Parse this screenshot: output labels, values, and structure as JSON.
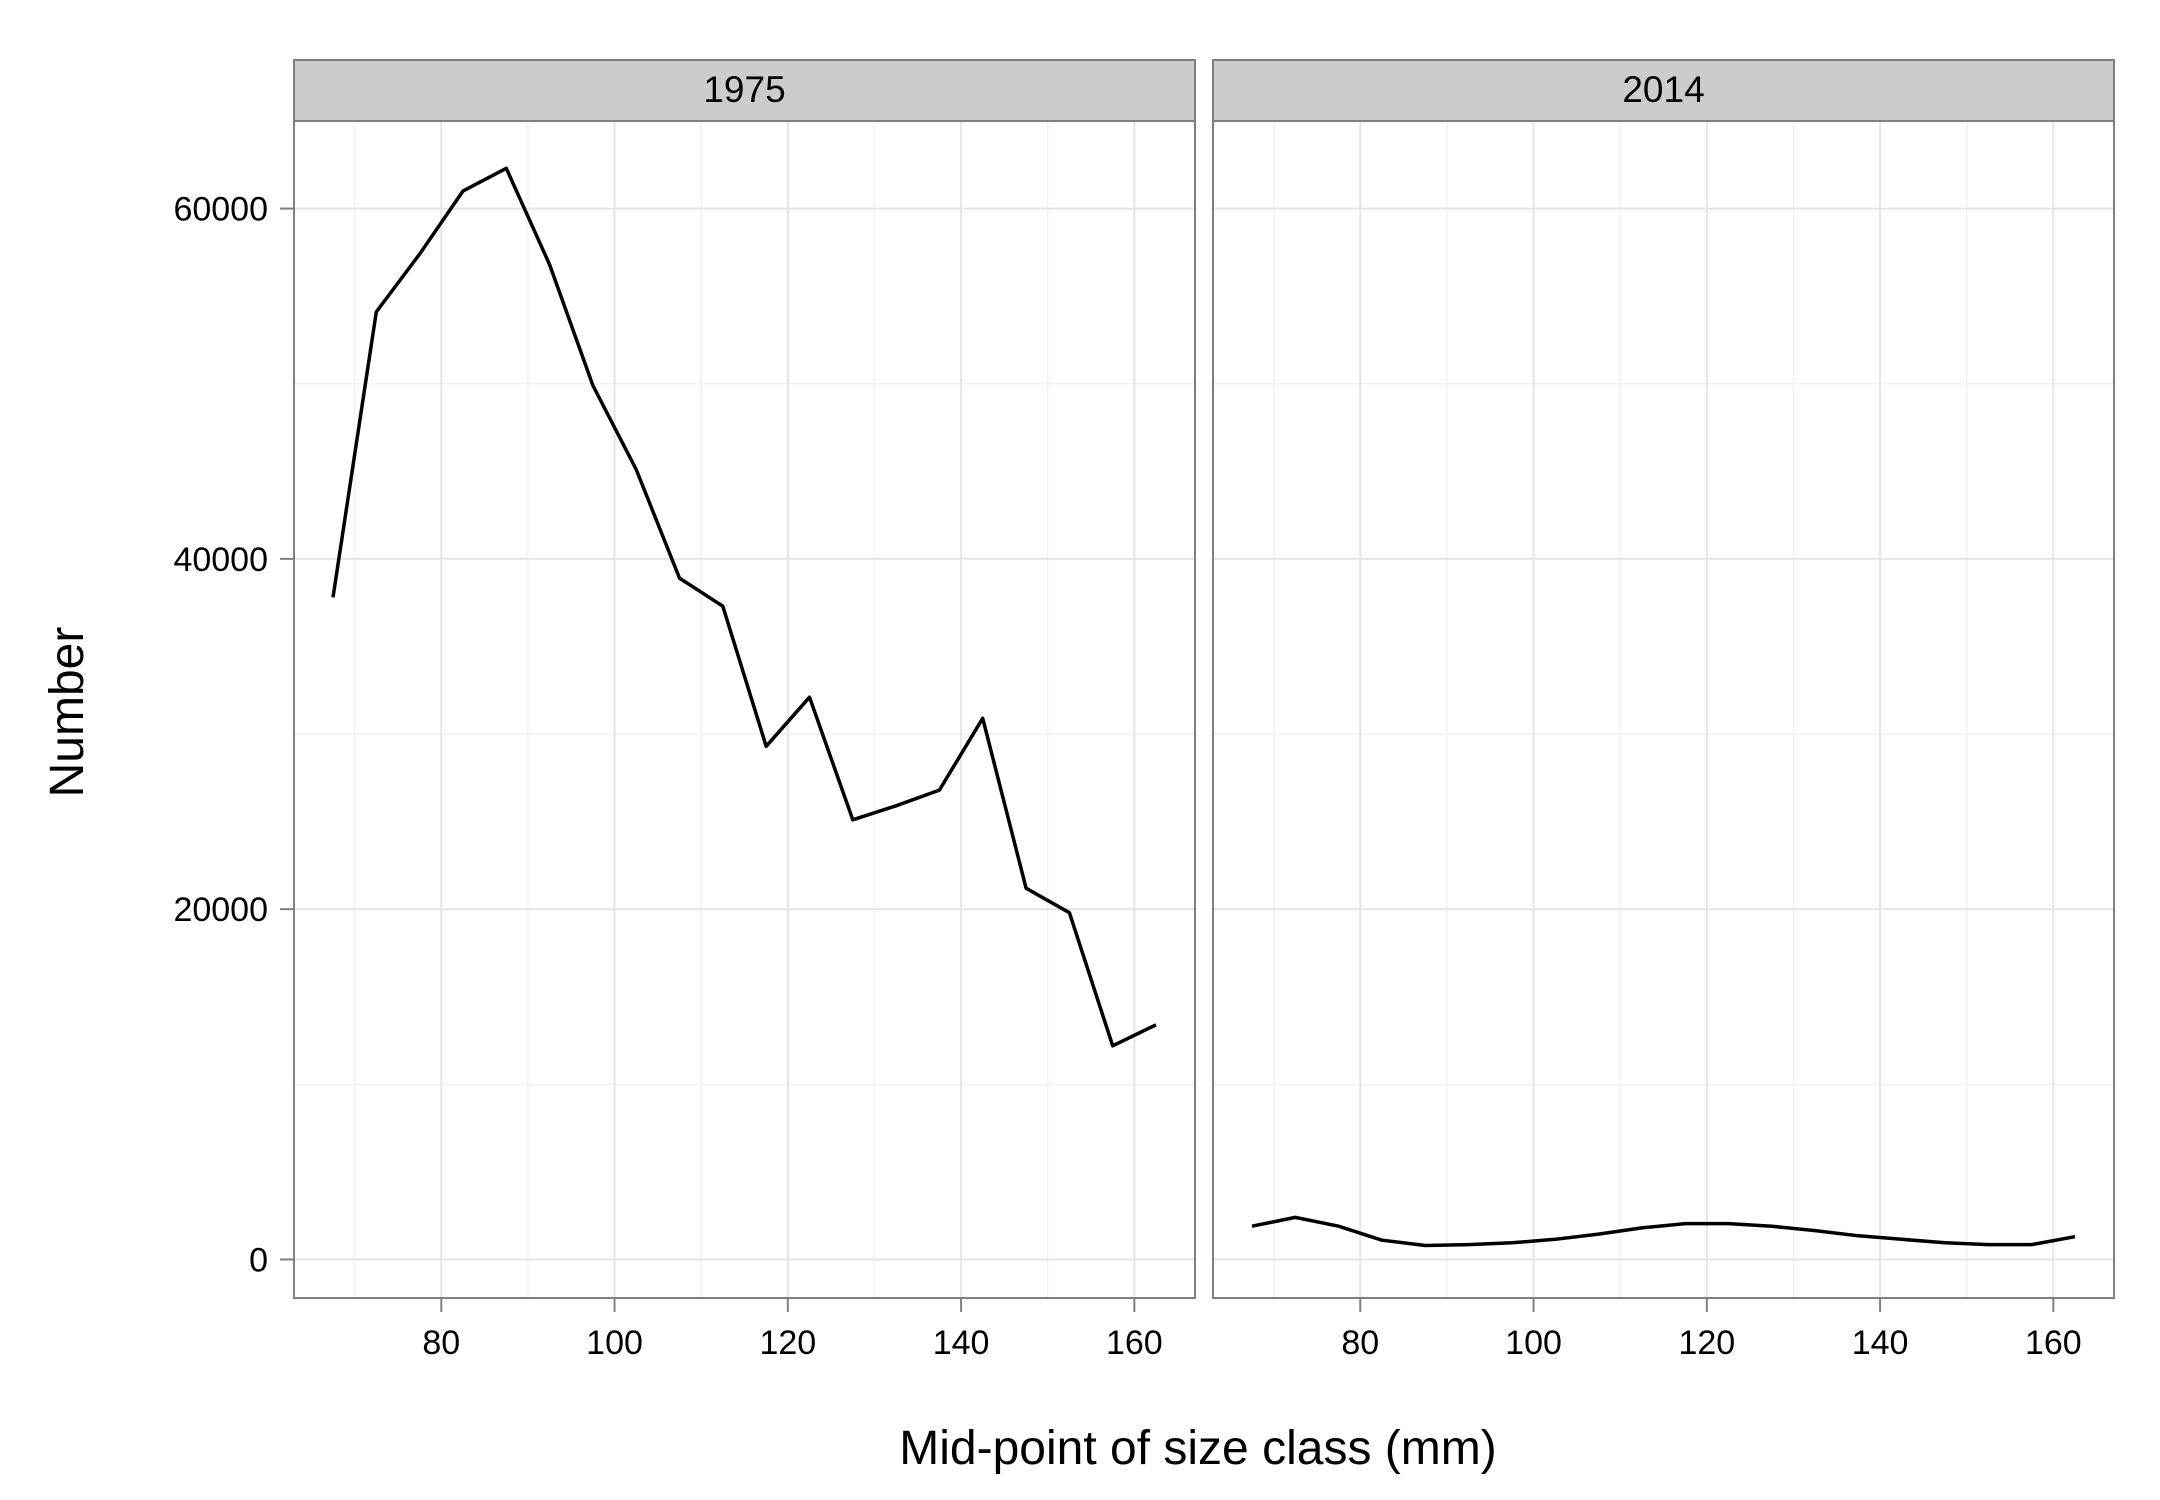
{
  "chart_data": {
    "type": "line",
    "xlabel": "Mid-point of size class (mm)",
    "ylabel": "Number",
    "xlim": [
      63,
      167
    ],
    "ylim": [
      -2200,
      65000
    ],
    "x_ticks": [
      80,
      100,
      120,
      140,
      160
    ],
    "x_ticks_minor": [
      70,
      90,
      110,
      130,
      150
    ],
    "y_ticks": [
      0,
      20000,
      40000,
      60000
    ],
    "y_ticks_minor": [
      10000,
      30000,
      50000
    ],
    "grid": true,
    "panels": [
      {
        "label": "1975",
        "x": [
          67.5,
          72.5,
          77.5,
          82.5,
          87.5,
          92.5,
          97.5,
          102.5,
          107.5,
          112.5,
          117.5,
          122.5,
          127.5,
          132.5,
          137.5,
          142.5,
          147.5,
          152.5,
          157.5,
          162.5
        ],
        "values": [
          37800,
          54100,
          57400,
          61000,
          62300,
          56800,
          49900,
          45100,
          38900,
          37300,
          29300,
          32100,
          25100,
          25900,
          26800,
          30900,
          21200,
          19800,
          12200,
          13400
        ]
      },
      {
        "label": "2014",
        "x": [
          67.5,
          72.5,
          77.5,
          82.5,
          87.5,
          92.5,
          97.5,
          102.5,
          107.5,
          112.5,
          117.5,
          122.5,
          127.5,
          132.5,
          137.5,
          142.5,
          147.5,
          152.5,
          157.5,
          162.5
        ],
        "values": [
          1900,
          2400,
          1900,
          1100,
          800,
          850,
          950,
          1150,
          1450,
          1800,
          2050,
          2050,
          1900,
          1650,
          1350,
          1150,
          950,
          850,
          850,
          1300
        ]
      }
    ]
  }
}
